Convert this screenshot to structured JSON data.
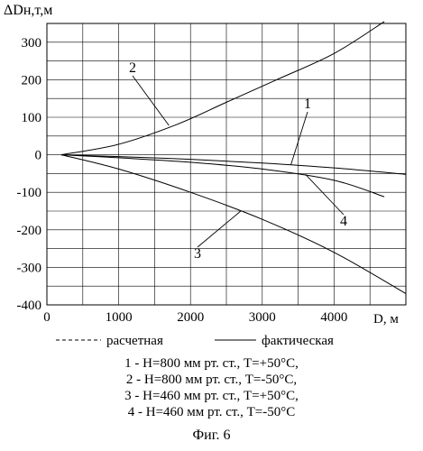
{
  "chart_data": {
    "type": "line",
    "title": "",
    "ylabel": "ΔDн,т,м",
    "xlabel": "D, м",
    "xlim": [
      0,
      5000
    ],
    "ylim": [
      -400,
      350
    ],
    "x_ticks": [
      "0",
      "1000",
      "2000",
      "3000",
      "4000"
    ],
    "y_ticks": [
      "300",
      "200",
      "100",
      "0",
      "-100",
      "-200",
      "-300",
      "-400"
    ],
    "grid": true,
    "series": [
      {
        "name": "1",
        "style": "solid",
        "x": [
          200,
          1000,
          2000,
          3000,
          4000,
          5000
        ],
        "y": [
          0,
          -5,
          -12,
          -22,
          -35,
          -52
        ]
      },
      {
        "name": "2",
        "style": "solid",
        "x": [
          200,
          1000,
          1800,
          2500,
          3200,
          4000,
          4700
        ],
        "y": [
          0,
          28,
          80,
          140,
          200,
          270,
          355
        ]
      },
      {
        "name": "3",
        "style": "solid",
        "x": [
          200,
          1000,
          2000,
          3000,
          4000,
          5000
        ],
        "y": [
          0,
          -38,
          -100,
          -172,
          -260,
          -370
        ]
      },
      {
        "name": "4",
        "style": "solid",
        "x": [
          200,
          1000,
          2000,
          3000,
          4000,
          4700
        ],
        "y": [
          0,
          -8,
          -20,
          -38,
          -68,
          -112
        ]
      }
    ],
    "curve_labels": [
      "1",
      "2",
      "3",
      "4"
    ]
  },
  "legend": {
    "dashed_label": "расчетная",
    "solid_label": "фактическая",
    "entries": [
      "1 - H=800 мм рт. ст., T=+50°C,",
      "2 - H=800 мм рт. ст., T=-50°C,",
      "3 - H=460 мм рт. ст., T=+50°C,",
      "4 - H=460 мм рт. ст., T=-50°C"
    ]
  },
  "caption": "Фиг. 6"
}
